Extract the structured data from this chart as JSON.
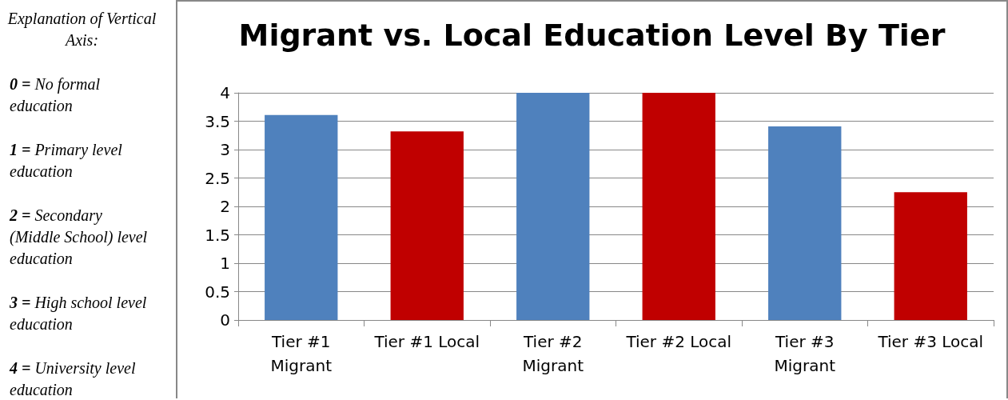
{
  "chart_data": {
    "type": "bar",
    "title": "Migrant vs. Local Education Level By Tier",
    "categories": [
      "Tier #1\nMigrant",
      "Tier #1 Local",
      "Tier #2\nMigrant",
      "Tier #2 Local",
      "Tier #3\nMigrant",
      "Tier #3 Local"
    ],
    "values": [
      3.61,
      3.32,
      4,
      4,
      3.41,
      2.25
    ],
    "colors": [
      "#4f81bd",
      "#c00000",
      "#4f81bd",
      "#c00000",
      "#4f81bd",
      "#c00000"
    ],
    "ylim": [
      0,
      4
    ],
    "yticks": [
      0,
      0.5,
      1,
      1.5,
      2,
      2.5,
      3,
      3.5,
      4
    ],
    "grid": "y",
    "annotations": [
      "Explanation of Vertical Axis:",
      "0 = No formal education",
      "1 = Primary level education",
      "2 = Secondary (Middle School) level education",
      "3 = High school level education",
      "4 = University level education"
    ]
  }
}
